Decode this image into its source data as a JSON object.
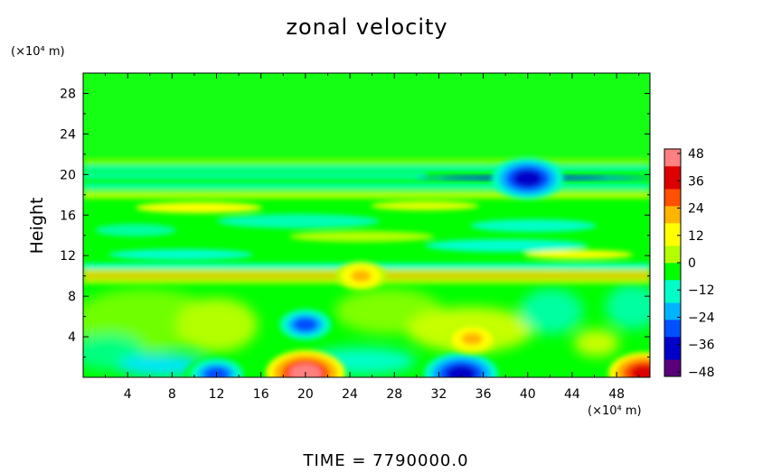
{
  "chart_data": {
    "type": "heatmap",
    "title": "zonal velocity",
    "ylabel": "Height",
    "xlabel": "",
    "x_unit": "(×10⁴ m)",
    "y_unit": "(×10⁴ m)",
    "x_range": [
      0,
      51
    ],
    "y_range": [
      0,
      30
    ],
    "x_ticks": [
      4,
      8,
      12,
      16,
      20,
      24,
      28,
      32,
      36,
      40,
      44,
      48
    ],
    "y_ticks": [
      4,
      8,
      12,
      16,
      20,
      24,
      28
    ],
    "colorbar": {
      "range": [
        -50,
        50
      ],
      "ticks": [
        48,
        36,
        24,
        12,
        0,
        -12,
        -24,
        -36,
        -48
      ],
      "tick_labels": [
        "48",
        "36",
        "24",
        "12",
        "0",
        "−12",
        "−24",
        "−36",
        "−48"
      ],
      "colors": [
        "#5a007a",
        "#0000c8",
        "#0050ff",
        "#00b4ff",
        "#00ffc8",
        "#00ff00",
        "#b4ff00",
        "#ffff00",
        "#ffb400",
        "#ff5000",
        "#dc0000",
        "#ff8080"
      ]
    },
    "features": [
      {
        "x": 20,
        "y": 0.4,
        "value": 44
      },
      {
        "x": 34,
        "y": 0.3,
        "value": -40
      },
      {
        "x": 20,
        "y": 5.2,
        "value": -28
      },
      {
        "x": 12,
        "y": 0.3,
        "value": -30
      },
      {
        "x": 35,
        "y": 3.8,
        "value": 22
      },
      {
        "x": 50.5,
        "y": 0.4,
        "value": 38
      },
      {
        "x": 40,
        "y": 19.6,
        "value": -38
      },
      {
        "x": 25,
        "y": 10.0,
        "value": 20
      }
    ],
    "time_label": "TIME  =  7790000.0"
  }
}
